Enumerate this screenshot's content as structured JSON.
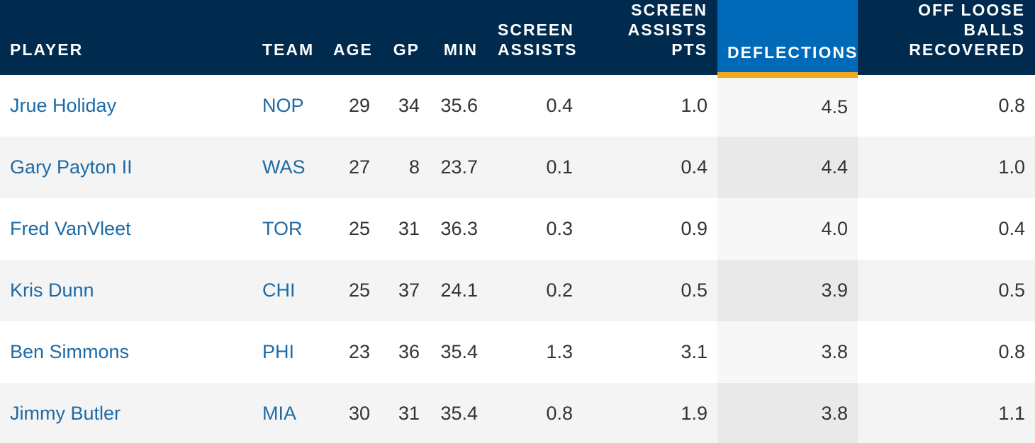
{
  "table": {
    "columns": [
      "PLAYER",
      "TEAM",
      "AGE",
      "GP",
      "MIN",
      "SCREEN ASSISTS",
      "SCREEN ASSISTS PTS",
      "DEFLECTIONS",
      "OFF LOOSE BALLS RECOVERED"
    ],
    "sorted_column": "DEFLECTIONS",
    "rows": [
      [
        "Jrue Holiday",
        "NOP",
        "29",
        "34",
        "35.6",
        "0.4",
        "1.0",
        "4.5",
        "0.8"
      ],
      [
        "Gary Payton II",
        "WAS",
        "27",
        "8",
        "23.7",
        "0.1",
        "0.4",
        "4.4",
        "1.0"
      ],
      [
        "Fred VanVleet",
        "TOR",
        "25",
        "31",
        "36.3",
        "0.3",
        "0.9",
        "4.0",
        "0.4"
      ],
      [
        "Kris Dunn",
        "CHI",
        "25",
        "37",
        "24.1",
        "0.2",
        "0.5",
        "3.9",
        "0.5"
      ],
      [
        "Ben Simmons",
        "PHI",
        "23",
        "36",
        "35.4",
        "1.3",
        "3.1",
        "3.8",
        "0.8"
      ],
      [
        "Jimmy Butler",
        "MIA",
        "30",
        "31",
        "35.4",
        "0.8",
        "1.9",
        "3.8",
        "1.1"
      ]
    ]
  },
  "colors": {
    "header_bg": "#002b4e",
    "sorted_header_bg": "#0069b8",
    "sort_indicator": "#f4a81d",
    "link": "#1d6aa5",
    "row_alt_bg": "#f4f4f4"
  }
}
